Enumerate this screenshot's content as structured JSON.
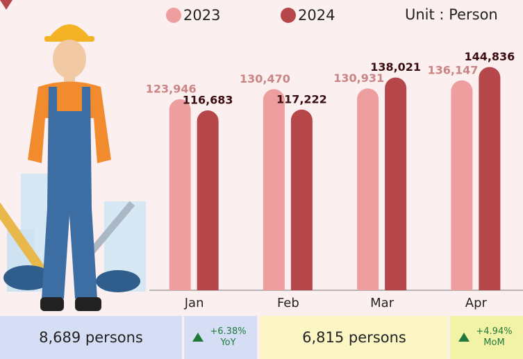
{
  "chart_data": {
    "type": "bar",
    "unit": "Unit : Person",
    "categories": [
      "Jan",
      "Feb",
      "Mar",
      "Apr"
    ],
    "series": [
      {
        "name": "2023",
        "color": "#ee9e9e",
        "values": [
          123946,
          130470,
          130931,
          136147
        ],
        "value_labels": [
          "123,946",
          "130,470",
          "130,931",
          "136,147"
        ]
      },
      {
        "name": "2024",
        "color": "#b5474b",
        "values": [
          116683,
          117222,
          138021,
          144836
        ],
        "value_labels": [
          "116,683",
          "117,222",
          "138,021",
          "144,836"
        ]
      }
    ],
    "ylim": [
      0,
      150000
    ]
  },
  "summary": {
    "yoy_total": "8,689 persons",
    "yoy_change": "+6.38%",
    "yoy_label": "YoY",
    "mom_total": "6,815 persons",
    "mom_change": "+4.94%",
    "mom_label": "MoM"
  }
}
